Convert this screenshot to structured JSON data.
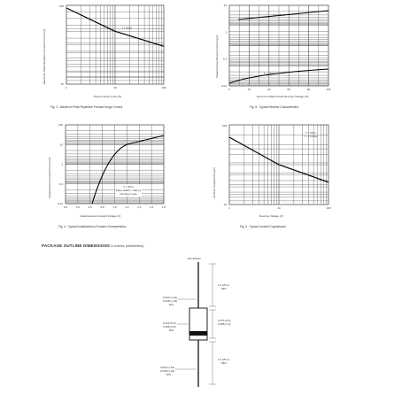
{
  "fig3": {
    "caption": "Fig. 3 - Maximum Peak Repetitive Forward Surge Current",
    "ylabel": "Maximum Peak Repetitive Forward Current (A)",
    "xlabel": "Percent Duty Cycle (%)",
    "curve_label": "T = 25°C",
    "yticks": [
      "100",
      "10"
    ],
    "xticks": [
      "1",
      "10",
      "100"
    ]
  },
  "fig5": {
    "caption": "Fig. 5 - Typical Reverse Characteristics",
    "ylabel": "Instantaneous Reverse Current (µA)",
    "xlabel": "Percent of Rated Peak Reverse Voltage (%)",
    "curve_top_label": "T = 125°C",
    "curve_bottom_label": "T = 25°C",
    "yticks": [
      "10",
      "1",
      "0.1",
      "0.01"
    ],
    "xticks": [
      "0",
      "20",
      "40",
      "60",
      "80",
      "100"
    ]
  },
  "fig4": {
    "caption": "Fig. 4 - Typical Instantaneous Forward Characteristics",
    "ylabel": "Instantaneous Forward Current (A)",
    "xlabel": "Instantaneous Forward Voltage (V)",
    "note_line1": "T = 25°C",
    "note_line2": "Pulse Width = 300 µs",
    "note_line3": "1% Duty Cycle",
    "yticks": [
      "100",
      "10",
      "1",
      "0.1",
      "0.01"
    ],
    "xticks": [
      "0.2",
      "0.4",
      "0.6",
      "0.8",
      "1.0",
      "1.2",
      "1.4",
      "1.6",
      "1.8"
    ]
  },
  "fig6": {
    "caption": "Fig. 6 - Typical Junction Capacitance",
    "ylabel": "Junction Capacitance (pF)",
    "xlabel": "Reverse Voltage (V)",
    "note_line1": "T = 25°C",
    "note_line2": "f = 1.0 MHz",
    "yticks": [
      "100",
      "10"
    ],
    "xticks": [
      "1",
      "10",
      "100"
    ]
  },
  "package": {
    "title": "PACKAGE OUTLINE DIMENSIONS",
    "units_note": "in inches (millimeters)",
    "package_name": "DO-201AD",
    "lead_dia_top": "0.052 (1.32)",
    "lead_dia_top2": "0.048 (1.22)",
    "dia_label": "DIA.",
    "min_len_top": "1.0 (25.4)",
    "min_label": "MIN.",
    "body_len_1": "0.375 (9.5)",
    "body_len_2": "0.285 (7.2)",
    "body_dia_1": "0.210 (5.3)",
    "body_dia_2": "0.188 (4.8)",
    "min_len_bottom": "1.0 (25.4)",
    "lead_dia_bottom": "0.052 (1.32)",
    "lead_dia_bottom2": "0.048 (1.22)"
  }
}
